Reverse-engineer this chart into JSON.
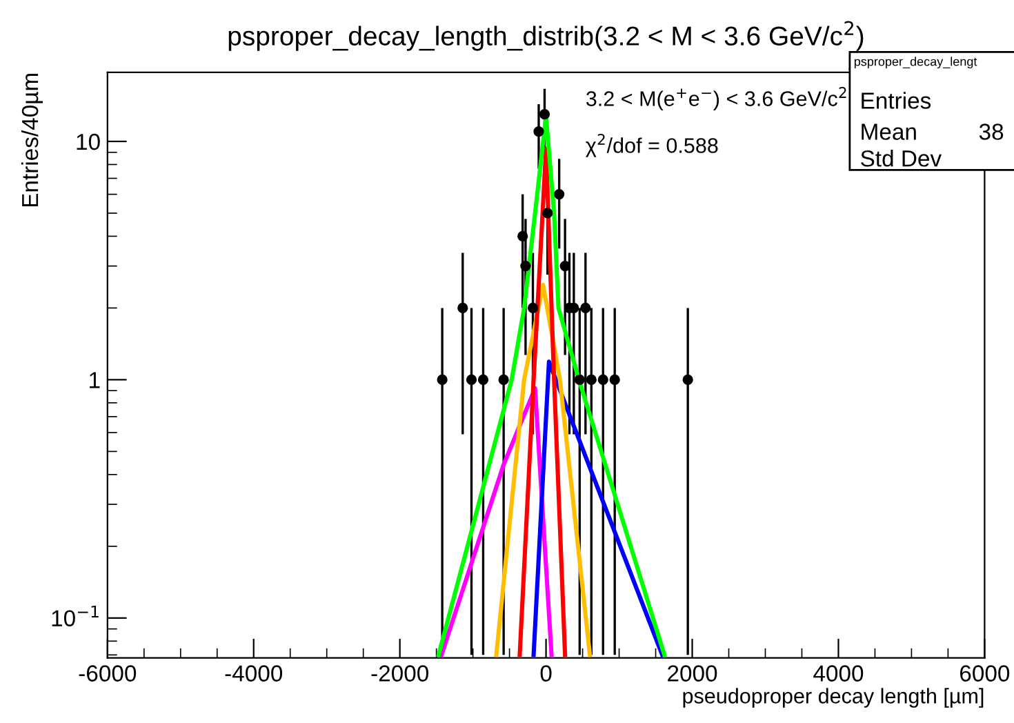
{
  "chart_data": {
    "type": "scatter",
    "title": "psproper_decay_length_distrib(3.2 < M < 3.6 GeV/c$^{2}$)",
    "xlabel": "pseudoproper decay length [µm]",
    "ylabel": "Entries/40µm",
    "annotations": [
      "3.2 < M(e$^{+}$e$^{−}$) < 3.6 GeV/c$^{2}$",
      "χ$^{2}$/dof = 0.588",
      "psproper_decay_lengt",
      "Entries",
      "Mean",
      "38",
      "Std Dev"
    ],
    "series": [
      {
        "color": "#000000",
        "marker": "circle",
        "x": [
          -1420,
          -1140,
          -1020,
          -860,
          -580,
          -320,
          -280,
          -180,
          -100,
          -20,
          20,
          180,
          260,
          320,
          380,
          460,
          540,
          620,
          780,
          940,
          1940
        ],
        "values": [
          1,
          2,
          1,
          1,
          1,
          4,
          3,
          2,
          11,
          13,
          5,
          6,
          3,
          2,
          2,
          1,
          2,
          1,
          1,
          1,
          1
        ],
        "errors": [
          [
            0.07,
            2
          ],
          1.41,
          [
            0.07,
            2
          ],
          [
            0.07,
            2
          ],
          [
            0.07,
            2
          ],
          2,
          1.73,
          1.41,
          3.32,
          3.61,
          2.24,
          2.45,
          1.73,
          1.41,
          1.41,
          [
            0.07,
            2
          ],
          1.41,
          [
            0.07,
            2
          ],
          [
            0.07,
            2
          ],
          [
            0.07,
            2
          ],
          [
            0.07,
            2
          ]
        ]
      },
      {
        "type": "line",
        "color": "#ff00ff",
        "x": [
          -1430,
          -580,
          -150,
          75
        ],
        "values": [
          0.07,
          0.44,
          0.92,
          0.07
        ]
      },
      {
        "type": "line",
        "color": "#0000ff",
        "x": [
          -170,
          40,
          1590
        ],
        "values": [
          0.07,
          1.19,
          0.07
        ]
      },
      {
        "type": "line",
        "color": "#ffbf00",
        "x": [
          -680,
          -300,
          -40,
          190,
          600
        ],
        "values": [
          0.07,
          1,
          2.5,
          1,
          0.07
        ]
      },
      {
        "type": "line",
        "color": "#ff0000",
        "x": [
          -360,
          -170,
          0,
          110,
          260
        ],
        "values": [
          0.07,
          1,
          9.3,
          1,
          0.07
        ]
      },
      {
        "type": "line",
        "color": "#00ff00",
        "x": [
          -1470,
          -470,
          -300,
          -150,
          0,
          110,
          170,
          450,
          1620
        ],
        "values": [
          0.07,
          1,
          2,
          5,
          12.8,
          5,
          2,
          1,
          0.07
        ]
      }
    ],
    "log": "y",
    "xlim": [
      -6000,
      6000
    ],
    "xticks": [
      -6000,
      -4000,
      -2000,
      0,
      2000,
      4000,
      6000
    ],
    "ylim": [
      0.068,
      19.5
    ],
    "yticks": [
      {
        "value": 0.1,
        "label": "10$^{−1}$"
      },
      1,
      10
    ],
    "grid": false
  }
}
